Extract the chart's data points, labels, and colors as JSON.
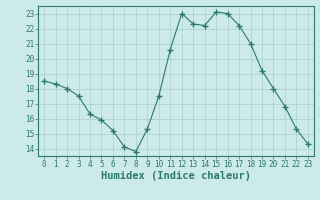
{
  "x": [
    0,
    1,
    2,
    3,
    4,
    5,
    6,
    7,
    8,
    9,
    10,
    11,
    12,
    13,
    14,
    15,
    16,
    17,
    18,
    19,
    20,
    21,
    22,
    23
  ],
  "y": [
    18.5,
    18.3,
    18.0,
    17.5,
    16.3,
    15.9,
    15.2,
    14.1,
    13.8,
    15.3,
    17.5,
    20.6,
    23.0,
    22.3,
    22.2,
    23.1,
    23.0,
    22.2,
    21.0,
    19.2,
    18.0,
    16.8,
    15.3,
    14.3
  ],
  "line_color": "#2d7a6a",
  "marker": "+",
  "marker_size": 4,
  "bg_color": "#cceae7",
  "grid_color": "#aacfcc",
  "xlabel": "Humidex (Indice chaleur)",
  "ylim": [
    13.5,
    23.5
  ],
  "xlim": [
    -0.5,
    23.5
  ],
  "yticks": [
    14,
    15,
    16,
    17,
    18,
    19,
    20,
    21,
    22,
    23
  ],
  "xticks": [
    0,
    1,
    2,
    3,
    4,
    5,
    6,
    7,
    8,
    9,
    10,
    11,
    12,
    13,
    14,
    15,
    16,
    17,
    18,
    19,
    20,
    21,
    22,
    23
  ],
  "tick_fontsize": 5.5,
  "xlabel_fontsize": 7.5,
  "axis_color": "#2d7a6a",
  "label_color": "#2d7a6a"
}
